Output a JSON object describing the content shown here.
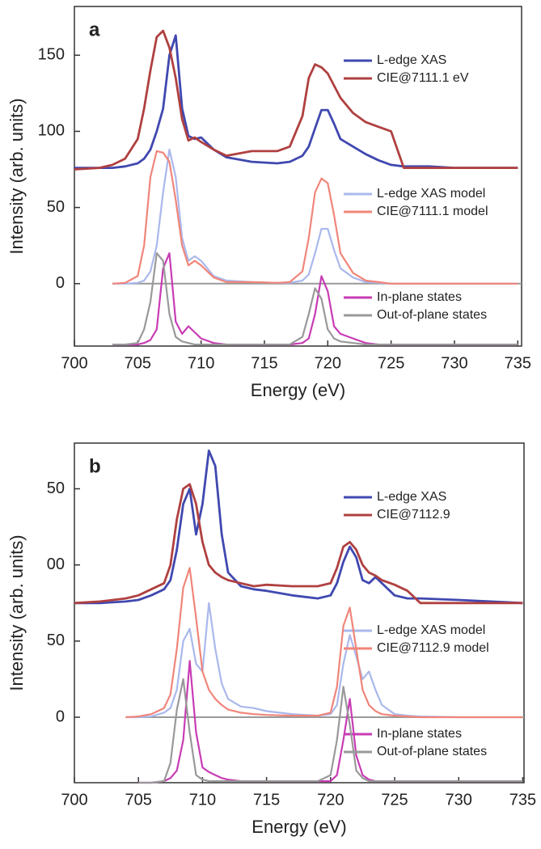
{
  "chart_data": [
    {
      "type": "line",
      "label": "a",
      "xlabel": "Energy (eV)",
      "ylabel": "Intensity (arb. units)",
      "xlim": [
        700,
        735.3
      ],
      "ylim": [
        -41,
        182
      ],
      "xticks": [
        700,
        705,
        710,
        715,
        720,
        725,
        730,
        735
      ],
      "yticks": [
        0,
        50,
        100,
        150
      ],
      "x": [
        700,
        702,
        703,
        704,
        705,
        705.5,
        706,
        706.5,
        707,
        707.5,
        708,
        708.5,
        709,
        709.5,
        710,
        711,
        712,
        714,
        716,
        717,
        718,
        718.5,
        719,
        719.5,
        720,
        720.5,
        721,
        722,
        723,
        724,
        725,
        726,
        728,
        730,
        735
      ],
      "series": [
        {
          "name": "L-edge XAS",
          "color": "#4048b0",
          "values": [
            76,
            76,
            76,
            77,
            79,
            82,
            88,
            100,
            115,
            150,
            163,
            115,
            97,
            95,
            96,
            88,
            83,
            80,
            79,
            80,
            84,
            90,
            102,
            114,
            114,
            105,
            95,
            90,
            85,
            81,
            78,
            77,
            77,
            76,
            76
          ]
        },
        {
          "name": "CIE@7111.1 eV",
          "color": "#b04040",
          "values": [
            75,
            76,
            78,
            82,
            95,
            115,
            140,
            162,
            166,
            155,
            135,
            108,
            94,
            96,
            93,
            88,
            84,
            87,
            87,
            90,
            110,
            135,
            144,
            142,
            138,
            130,
            122,
            112,
            106,
            103,
            100,
            76,
            76,
            76,
            76
          ]
        },
        {
          "name": "L-edge XAS model",
          "color": "#aab8ec",
          "values": [
            null,
            null,
            0,
            0,
            0.5,
            2,
            8,
            25,
            60,
            88,
            70,
            30,
            15,
            18,
            15,
            5,
            2,
            1,
            0.5,
            0.5,
            2,
            6,
            20,
            36,
            36,
            22,
            10,
            4,
            1,
            0.5,
            0,
            0,
            0,
            0,
            0
          ]
        },
        {
          "name": "CIE@7111.1 model",
          "color": "#f0857a",
          "values": [
            null,
            null,
            0,
            0.5,
            5,
            25,
            70,
            87,
            86,
            80,
            55,
            25,
            12,
            15,
            12,
            4,
            1,
            1,
            0.5,
            1,
            8,
            30,
            60,
            69,
            66,
            45,
            20,
            7,
            2,
            1,
            0,
            0,
            0,
            0,
            0
          ]
        },
        {
          "name": "In-plane states",
          "color": "#c83cb4",
          "values": [
            null,
            null,
            -40,
            -40,
            -40,
            -39,
            -37,
            -30,
            10,
            20,
            -25,
            -33,
            -28,
            -32,
            -36,
            -39,
            -40,
            -40,
            -40,
            -40,
            -39,
            -36,
            -20,
            5,
            -5,
            -28,
            -33,
            -36,
            -39,
            -40,
            -40,
            -40,
            -40,
            -40,
            -40
          ]
        },
        {
          "name": "Out-of-plane states",
          "color": "#999999",
          "values": [
            null,
            null,
            -40,
            -40,
            -39,
            -30,
            -12,
            20,
            15,
            -20,
            -35,
            -38,
            -39,
            -40,
            -40,
            -40,
            -40,
            -40,
            -40,
            -40,
            -35,
            -20,
            -3,
            -10,
            -30,
            -36,
            -38,
            -39,
            -40,
            -40,
            -40,
            -40,
            -40,
            -40,
            -40
          ]
        }
      ]
    },
    {
      "type": "line",
      "label": "b",
      "xlabel": "Energy (eV)",
      "ylabel": "Intensity (arb. units)",
      "xlim": [
        700,
        735.1
      ],
      "ylim": [
        -43,
        180
      ],
      "xticks": [
        700,
        705,
        710,
        715,
        720,
        725,
        730,
        735
      ],
      "yticks": [
        {
          "value": 150,
          "label": "50"
        },
        {
          "value": 100,
          "label": "00"
        },
        50,
        0
      ],
      "x": [
        700,
        702,
        704,
        705,
        706,
        707,
        707.5,
        708,
        708.5,
        709,
        709.5,
        710,
        710.5,
        711,
        711.5,
        712,
        713,
        714,
        715,
        717,
        719,
        720,
        720.5,
        721,
        721.5,
        722,
        722.5,
        723,
        723.5,
        724,
        725,
        726,
        727,
        730,
        735
      ],
      "series": [
        {
          "name": "L-edge XAS",
          "color": "#4048b0",
          "values": [
            75,
            75,
            76,
            77,
            80,
            84,
            90,
            110,
            140,
            150,
            120,
            140,
            175,
            165,
            120,
            95,
            86,
            84,
            83,
            80,
            78,
            80,
            88,
            102,
            112,
            105,
            90,
            88,
            92,
            88,
            80,
            78,
            78,
            77,
            75
          ]
        },
        {
          "name": "CIE@7112.9",
          "color": "#b04040",
          "values": [
            75,
            76,
            78,
            80,
            84,
            88,
            100,
            130,
            150,
            153,
            140,
            115,
            100,
            95,
            92,
            90,
            88,
            86,
            87,
            86,
            86,
            88,
            98,
            112,
            115,
            110,
            100,
            95,
            93,
            90,
            87,
            83,
            75,
            75,
            75
          ]
        },
        {
          "name": "L-edge XAS model",
          "color": "#aab8ec",
          "values": [
            null,
            null,
            0,
            0,
            0.5,
            3,
            6,
            18,
            50,
            58,
            35,
            30,
            75,
            45,
            22,
            12,
            7,
            6,
            4,
            2,
            1,
            2,
            8,
            35,
            54,
            40,
            25,
            30,
            18,
            8,
            2,
            1,
            0.5,
            0,
            0
          ]
        },
        {
          "name": "CIE@7112.9 model",
          "color": "#f0857a",
          "values": [
            null,
            null,
            0,
            0.5,
            2,
            6,
            15,
            45,
            85,
            98,
            65,
            30,
            18,
            12,
            8,
            5,
            3,
            2,
            1.5,
            1,
            1,
            3,
            20,
            60,
            72,
            45,
            18,
            8,
            4,
            2,
            1,
            0.5,
            0,
            0,
            0
          ]
        },
        {
          "name": "In-plane states",
          "color": "#c83cb4",
          "values": [
            null,
            null,
            null,
            -43,
            -43,
            -42,
            -40,
            -35,
            -15,
            37,
            -10,
            -33,
            -36,
            -38,
            -40,
            -41,
            -42,
            -42,
            -42,
            -42,
            -42,
            -42,
            -38,
            -15,
            12,
            -25,
            -38,
            -41,
            -42,
            -42,
            -42,
            -42,
            -42,
            -42,
            -42
          ]
        },
        {
          "name": "Out-of-plane states",
          "color": "#999999",
          "values": [
            null,
            null,
            null,
            -43,
            -43,
            -42,
            -30,
            5,
            25,
            -10,
            -38,
            -41,
            -42,
            -42,
            -42,
            -42,
            -42,
            -42,
            -42,
            -42,
            -42,
            -38,
            -15,
            20,
            -5,
            -35,
            -40,
            -42,
            -42,
            -42,
            -42,
            -42,
            -42,
            -42,
            -42
          ]
        }
      ]
    }
  ]
}
